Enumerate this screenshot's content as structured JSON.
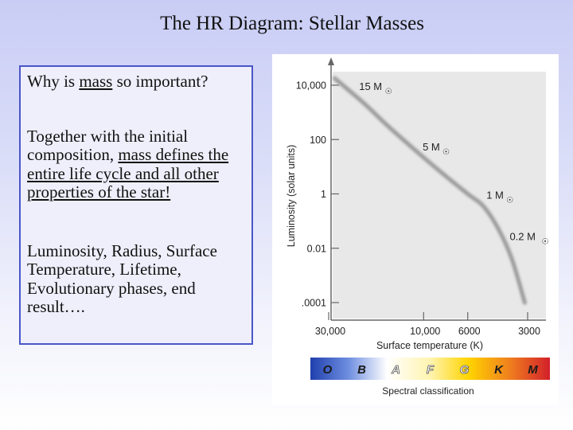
{
  "title": "The HR Diagram: Stellar Masses",
  "text_box": {
    "q_prefix": "Why is ",
    "q_mass": "mass",
    "q_suffix": " so important?",
    "p2_prefix": "Together with the initial composition, ",
    "p2_underlined": "mass defines the entire life cycle and all other properties of the star!",
    "p3": "Luminosity, Radius, Surface Temperature, Lifetime, Evolutionary phases, end result…."
  },
  "chart_data": {
    "type": "line",
    "xlabel": "Surface temperature (K)",
    "ylabel": "Luminosity (solar units)",
    "x_scale": "log-reversed",
    "y_scale": "log",
    "x_ticks": [
      "30,000",
      "10,000",
      "6000",
      "3000"
    ],
    "y_ticks": [
      "10,000",
      "100",
      "1",
      "0.01",
      ".0001"
    ],
    "series": [
      {
        "values": [
          {
            "x": 28000,
            "y": 18000
          },
          {
            "x": 20000,
            "y": 2200
          },
          {
            "x": 15000,
            "y": 300
          },
          {
            "x": 11000,
            "y": 40
          },
          {
            "x": 8500,
            "y": 8
          },
          {
            "x": 6000,
            "y": 1
          },
          {
            "x": 5000,
            "y": 0.35
          },
          {
            "x": 4200,
            "y": 0.05
          },
          {
            "x": 3600,
            "y": 0.004
          },
          {
            "x": 3100,
            "y": 0.0001
          }
        ]
      }
    ],
    "annotations": [
      {
        "label": "15 M",
        "symbol": "☉",
        "x": 24000,
        "y": 10000
      },
      {
        "label": "5 M",
        "symbol": "☉",
        "x": 11500,
        "y": 60
      },
      {
        "label": "1 M",
        "symbol": "☉",
        "x": 5500,
        "y": 1
      },
      {
        "label": "0.2 M",
        "symbol": "☉",
        "x": 4200,
        "y": 0.03
      }
    ],
    "spectral_bar": {
      "label": "Spectral classification",
      "classes": [
        "O",
        "B",
        "A",
        "F",
        "G",
        "K",
        "M"
      ]
    },
    "colors": {
      "curve": "#9a9a9a",
      "plot_bg": "#e8e8e8",
      "axes": "#666666",
      "text": "#222222"
    }
  }
}
